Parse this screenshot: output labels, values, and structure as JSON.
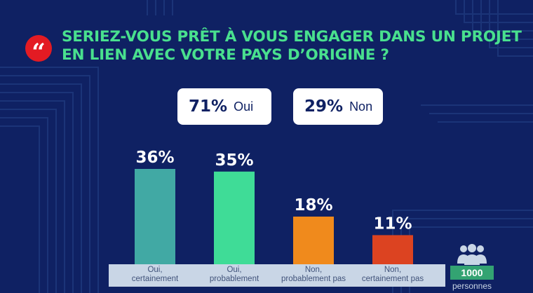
{
  "question": "SERIEZ-VOUS PRÊT À VOUS ENGAGER DANS UN PROJET EN LIEN AVEC VOTRE PAYS D’ORIGINE ?",
  "quote_icon": "quote-mark-icon",
  "quote_glyph": "“",
  "summary": {
    "oui": {
      "pct": "71%",
      "label": "Oui"
    },
    "non": {
      "pct": "29%",
      "label": "Non"
    }
  },
  "sample": {
    "count": "1000",
    "label": "personnes",
    "icon": "people-group-icon"
  },
  "colors": {
    "background": "#0f2163",
    "title": "#49e08e",
    "quote_badge": "#e31b23",
    "count_badge": "#33a372"
  },
  "chart_data": {
    "type": "bar",
    "categories": [
      "Oui,\ncertainement",
      "Oui,\nprobablement",
      "Non,\nprobablement pas",
      "Non,\ncertainement pas"
    ],
    "values": [
      36,
      35,
      18,
      11
    ],
    "value_labels": [
      "36%",
      "35%",
      "18%",
      "11%"
    ],
    "colors": [
      "#41a9a4",
      "#3fdc97",
      "#f08a1c",
      "#dc4321"
    ],
    "ylim": [
      0,
      36
    ],
    "grid": false,
    "legend": "none"
  }
}
